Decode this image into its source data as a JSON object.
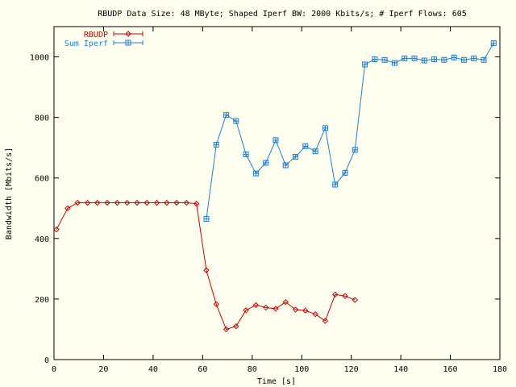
{
  "colors": {
    "background": "#fffff0",
    "axis": "#000000",
    "rbudp": "#cc0000",
    "iperf": "#1a7fd4"
  },
  "chart_data": {
    "type": "line",
    "title": "RBUDP Data Size: 48 MByte; Shaped Iperf BW: 2000 Kbits/s; # Iperf Flows: 605",
    "xlabel": "Time [s]",
    "ylabel": "Bandwidth [Mbits/s]",
    "xlim": [
      0,
      180
    ],
    "ylim": [
      0,
      1100
    ],
    "xticks": [
      0,
      20,
      40,
      60,
      80,
      100,
      120,
      140,
      160,
      180
    ],
    "yticks": [
      0,
      200,
      400,
      600,
      800,
      1000
    ],
    "grid": false,
    "legend_position": "top-left",
    "series": [
      {
        "name": "RBUDP",
        "color": "#cc0000",
        "marker": "diamond",
        "x": [
          1,
          5.5,
          9.5,
          13.5,
          17.5,
          21.5,
          25.5,
          29.5,
          33.5,
          37.5,
          41.5,
          45.5,
          49.5,
          53.5,
          57.5,
          61.5,
          65.5,
          69.5,
          73.5,
          77.5,
          81.5,
          85.5,
          89.5,
          93.5,
          97.5,
          101.5,
          105.5,
          109.5,
          113.5,
          117.5,
          121.5
        ],
        "y": [
          430,
          500,
          518,
          518,
          518,
          518,
          518,
          518,
          518,
          518,
          518,
          518,
          518,
          518,
          515,
          295,
          183,
          100,
          110,
          163,
          180,
          172,
          168,
          190,
          165,
          162,
          150,
          128,
          215,
          210,
          197
        ]
      },
      {
        "name": "Sum Iperf",
        "color": "#1a7fd4",
        "marker": "boxed-plus",
        "x": [
          61.5,
          65.5,
          69.5,
          73.5,
          77.5,
          81.5,
          85.5,
          89.5,
          93.5,
          97.5,
          101.5,
          105.5,
          109.5,
          113.5,
          117.5,
          121.5,
          125.5,
          129.5,
          133.5,
          137.5,
          141.5,
          145.5,
          149.5,
          153.5,
          157.5,
          161.5,
          165.5,
          169.5,
          173.5,
          177.5
        ],
        "y": [
          465,
          710,
          808,
          788,
          678,
          615,
          650,
          725,
          642,
          670,
          705,
          688,
          765,
          578,
          617,
          693,
          975,
          992,
          990,
          980,
          995,
          995,
          988,
          992,
          990,
          998,
          990,
          995,
          990,
          1045
        ]
      }
    ]
  }
}
